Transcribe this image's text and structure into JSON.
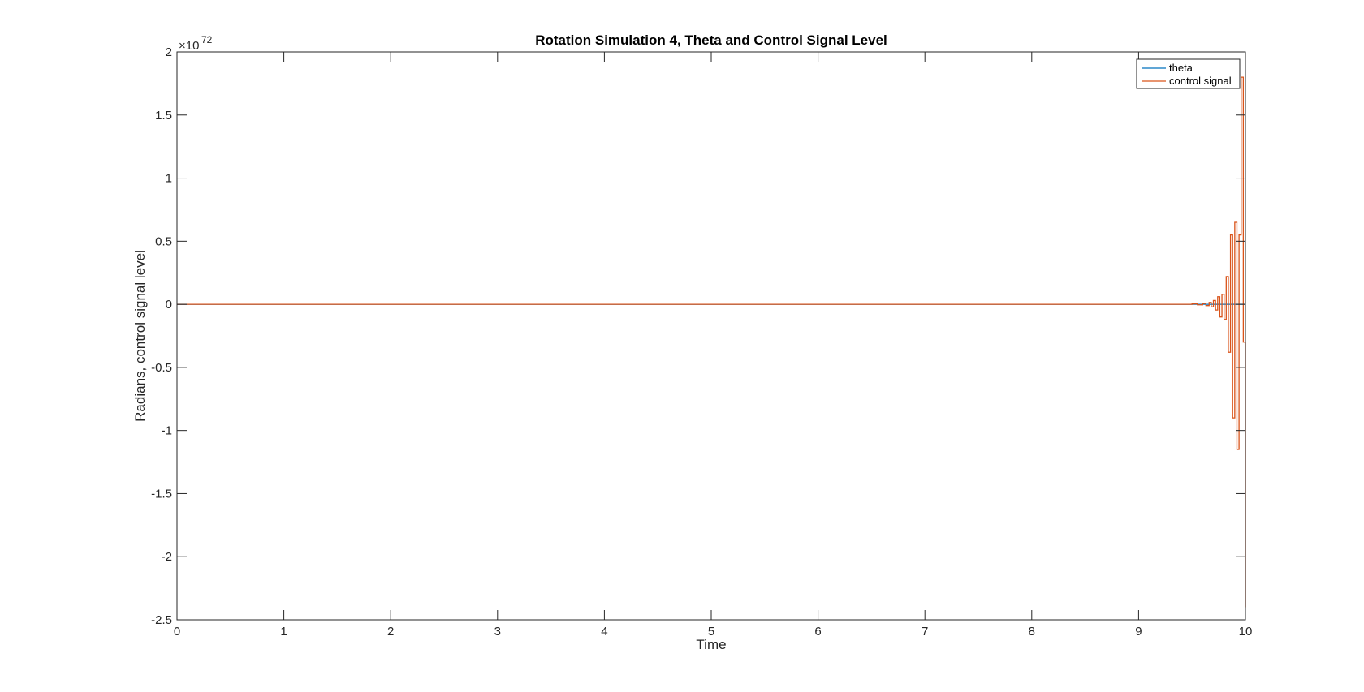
{
  "chart_data": {
    "type": "line",
    "title": "Rotation Simulation 4, Theta and Control Signal Level",
    "xlabel": "Time",
    "ylabel": "Radians, control signal level",
    "y_exponent_base": "×10",
    "y_exponent_power": "72",
    "xlim": [
      0,
      10
    ],
    "ylim": [
      -2.5,
      2.0
    ],
    "x_ticks": [
      "0",
      "1",
      "2",
      "3",
      "4",
      "5",
      "6",
      "7",
      "8",
      "9",
      "10"
    ],
    "y_ticks": [
      "-2.5",
      "-2",
      "-1.5",
      "-1",
      "-0.5",
      "0",
      "0.5",
      "1",
      "1.5",
      "2"
    ],
    "y_tick_values": [
      -2.5,
      -2,
      -1.5,
      -1,
      -0.5,
      0,
      0.5,
      1,
      1.5,
      2
    ],
    "grid": false,
    "legend_position": "top-right",
    "series": [
      {
        "name": "theta",
        "color": "#0072BD",
        "x": [
          0,
          9.5,
          9.8,
          9.9,
          9.95,
          9.98,
          10.0
        ],
        "y": [
          0,
          0,
          0,
          0,
          0,
          0,
          0
        ]
      },
      {
        "name": "control signal",
        "color": "#D95319",
        "x": [
          0,
          9.4,
          9.5,
          9.55,
          9.6,
          9.63,
          9.66,
          9.68,
          9.7,
          9.72,
          9.74,
          9.76,
          9.78,
          9.8,
          9.82,
          9.84,
          9.86,
          9.88,
          9.9,
          9.92,
          9.94,
          9.96,
          9.98,
          10.0
        ],
        "y": [
          0,
          0,
          0.003,
          -0.004,
          0.006,
          -0.01,
          0.015,
          -0.02,
          0.03,
          -0.045,
          0.06,
          -0.1,
          0.08,
          -0.12,
          0.22,
          -0.38,
          0.55,
          -0.9,
          0.65,
          -1.15,
          0.55,
          1.8,
          -0.3,
          -2.4
        ]
      }
    ]
  }
}
